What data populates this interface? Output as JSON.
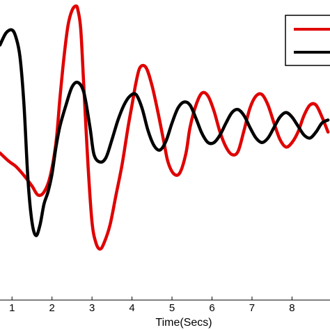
{
  "chart_data": {
    "type": "line",
    "xlabel": "Time(Secs)",
    "ylabel": "",
    "title": "",
    "xlim": [
      0.7,
      8.95
    ],
    "ylim": [
      -1.0,
      1.0
    ],
    "xticks": [
      "1",
      "2",
      "3",
      "4",
      "5",
      "6",
      "7",
      "8"
    ],
    "grid": false,
    "legend": {
      "position": "top-right",
      "entries": 2
    },
    "series": [
      {
        "color": "#e00000",
        "x": [
          0.7,
          0.9,
          1.0,
          1.1,
          1.3,
          1.5,
          1.65,
          1.8,
          1.95,
          2.1,
          2.2,
          2.3,
          2.4,
          2.5,
          2.6,
          2.65,
          2.72,
          2.8,
          2.9,
          3.0,
          3.1,
          3.2,
          3.3,
          3.45,
          3.6,
          3.75,
          3.9,
          4.0,
          4.1,
          4.2,
          4.35,
          4.5,
          4.65,
          4.8,
          4.9,
          5.05,
          5.2,
          5.35,
          5.45,
          5.6,
          5.75,
          5.9,
          6.05,
          6.2,
          6.35,
          6.5,
          6.65,
          6.8,
          6.95,
          7.1,
          7.25,
          7.4,
          7.55,
          7.7,
          7.85,
          8.0,
          8.15,
          8.3,
          8.45,
          8.6,
          8.75,
          8.9
        ],
        "y": [
          -0.02,
          -0.07,
          -0.09,
          -0.11,
          -0.17,
          -0.24,
          -0.3,
          -0.28,
          -0.18,
          0.05,
          0.35,
          0.62,
          0.83,
          0.93,
          0.96,
          0.93,
          0.8,
          0.4,
          -0.1,
          -0.48,
          -0.62,
          -0.66,
          -0.62,
          -0.5,
          -0.3,
          -0.1,
          0.15,
          0.3,
          0.45,
          0.55,
          0.55,
          0.43,
          0.25,
          0.05,
          -0.08,
          -0.16,
          -0.15,
          -0.02,
          0.15,
          0.3,
          0.38,
          0.36,
          0.26,
          0.12,
          0.02,
          -0.03,
          -0.01,
          0.13,
          0.28,
          0.36,
          0.37,
          0.3,
          0.18,
          0.07,
          0.02,
          0.05,
          0.12,
          0.23,
          0.3,
          0.3,
          0.22,
          0.12
        ]
      },
      {
        "color": "#000000",
        "x": [
          0.7,
          0.85,
          1.0,
          1.1,
          1.2,
          1.3,
          1.4,
          1.5,
          1.6,
          1.7,
          1.8,
          1.9,
          2.0,
          2.1,
          2.2,
          2.35,
          2.5,
          2.65,
          2.8,
          2.95,
          3.05,
          3.2,
          3.35,
          3.5,
          3.65,
          3.8,
          3.95,
          4.1,
          4.25,
          4.4,
          4.55,
          4.7,
          4.85,
          5.0,
          5.15,
          5.3,
          5.45,
          5.6,
          5.75,
          5.9,
          6.05,
          6.2,
          6.35,
          6.5,
          6.65,
          6.8,
          6.95,
          7.1,
          7.25,
          7.4,
          7.55,
          7.7,
          7.85,
          8.0,
          8.15,
          8.3,
          8.45,
          8.6,
          8.75,
          8.9
        ],
        "y": [
          0.7,
          0.78,
          0.8,
          0.75,
          0.62,
          0.3,
          -0.2,
          -0.48,
          -0.57,
          -0.5,
          -0.36,
          -0.28,
          -0.16,
          0.02,
          0.16,
          0.3,
          0.42,
          0.45,
          0.38,
          0.15,
          -0.03,
          -0.08,
          -0.05,
          0.07,
          0.2,
          0.3,
          0.36,
          0.37,
          0.28,
          0.13,
          0.03,
          0.0,
          0.06,
          0.18,
          0.28,
          0.32,
          0.3,
          0.21,
          0.11,
          0.05,
          0.05,
          0.1,
          0.18,
          0.25,
          0.27,
          0.23,
          0.15,
          0.08,
          0.05,
          0.08,
          0.15,
          0.22,
          0.25,
          0.22,
          0.16,
          0.1,
          0.08,
          0.12,
          0.18,
          0.2
        ]
      }
    ]
  }
}
